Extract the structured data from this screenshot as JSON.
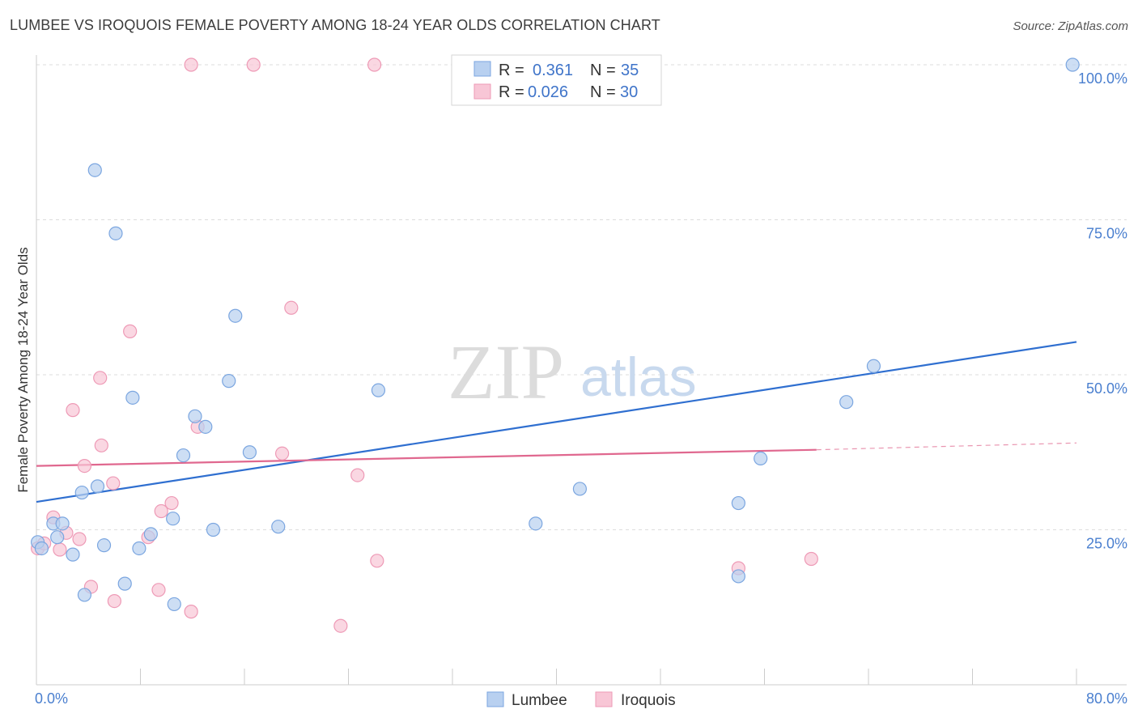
{
  "title": "LUMBEE VS IROQUOIS FEMALE POVERTY AMONG 18-24 YEAR OLDS CORRELATION CHART",
  "source": "Source: ZipAtlas.com",
  "watermark": {
    "zip": "ZIP",
    "atlas": "atlas"
  },
  "legend_top": [
    {
      "r_label": "R =",
      "r_value": "0.361",
      "n_label": "N =",
      "n_value": "35"
    },
    {
      "r_label": "R =",
      "r_value": "0.026",
      "n_label": "N =",
      "n_value": "30"
    }
  ],
  "legend_bottom": [
    "Lumbee",
    "Iroquois"
  ],
  "colors": {
    "lumbee_fill": "#b8d0f0",
    "lumbee_stroke": "#7ba6e0",
    "lumbee_line": "#2f6fd0",
    "iroquois_fill": "#f8c6d6",
    "iroquois_stroke": "#ee9ab6",
    "iroquois_line": "#e0688f",
    "tick_text": "#4a7fcf",
    "grid": "#dddddd"
  },
  "chart_data": {
    "type": "scatter",
    "title": "LUMBEE VS IROQUOIS FEMALE POVERTY AMONG 18-24 YEAR OLDS CORRELATION CHART",
    "xlabel": "",
    "ylabel": "Female Poverty Among 18-24 Year Olds",
    "xlim": [
      0,
      80
    ],
    "ylim": [
      0,
      102
    ],
    "x_tick_labels": [
      "0.0%",
      "80.0%"
    ],
    "y_ticks": [
      25,
      50,
      75,
      100
    ],
    "y_tick_labels": [
      "25.0%",
      "50.0%",
      "75.0%",
      "100.0%"
    ],
    "grid": true,
    "legend_position": "top-center",
    "series": [
      {
        "name": "Lumbee",
        "points": [
          [
            0.1,
            23.0
          ],
          [
            0.4,
            22.0
          ],
          [
            1.3,
            26.0
          ],
          [
            1.6,
            23.8
          ],
          [
            2.0,
            26.0
          ],
          [
            2.8,
            21.0
          ],
          [
            3.5,
            31.0
          ],
          [
            3.7,
            14.5
          ],
          [
            4.5,
            83.0
          ],
          [
            4.7,
            32.0
          ],
          [
            5.2,
            22.5
          ],
          [
            6.1,
            72.8
          ],
          [
            6.8,
            16.3
          ],
          [
            7.4,
            46.3
          ],
          [
            7.9,
            22.0
          ],
          [
            8.8,
            24.3
          ],
          [
            10.5,
            26.8
          ],
          [
            10.6,
            13.0
          ],
          [
            11.3,
            37.0
          ],
          [
            12.2,
            43.3
          ],
          [
            13.0,
            41.6
          ],
          [
            13.6,
            25.0
          ],
          [
            14.8,
            49.0
          ],
          [
            15.3,
            59.5
          ],
          [
            16.4,
            37.5
          ],
          [
            18.6,
            25.5
          ],
          [
            26.3,
            47.5
          ],
          [
            38.4,
            26.0
          ],
          [
            41.8,
            31.6
          ],
          [
            54.0,
            29.3
          ],
          [
            54.0,
            17.5
          ],
          [
            55.7,
            36.5
          ],
          [
            62.3,
            45.6
          ],
          [
            64.4,
            51.4
          ],
          [
            79.7,
            100.0
          ]
        ],
        "trend": {
          "x": [
            0,
            80
          ],
          "y": [
            29.5,
            55.3
          ]
        }
      },
      {
        "name": "Iroquois",
        "points": [
          [
            0.1,
            22.0
          ],
          [
            0.6,
            22.8
          ],
          [
            1.3,
            27.0
          ],
          [
            1.8,
            21.8
          ],
          [
            2.3,
            24.5
          ],
          [
            2.8,
            44.3
          ],
          [
            3.3,
            23.5
          ],
          [
            3.7,
            35.3
          ],
          [
            4.2,
            15.8
          ],
          [
            4.9,
            49.5
          ],
          [
            5.0,
            38.6
          ],
          [
            5.9,
            32.5
          ],
          [
            6.0,
            13.5
          ],
          [
            7.2,
            57.0
          ],
          [
            9.4,
            15.3
          ],
          [
            9.6,
            28.0
          ],
          [
            8.6,
            23.8
          ],
          [
            10.4,
            29.3
          ],
          [
            11.9,
            11.8
          ],
          [
            11.9,
            100.0
          ],
          [
            12.4,
            41.6
          ],
          [
            16.7,
            100.0
          ],
          [
            18.9,
            37.3
          ],
          [
            19.6,
            60.8
          ],
          [
            23.4,
            9.5
          ],
          [
            24.7,
            33.8
          ],
          [
            26.0,
            100.0
          ],
          [
            26.2,
            20.0
          ],
          [
            54.0,
            18.8
          ],
          [
            59.6,
            20.3
          ]
        ],
        "trend": {
          "x": [
            0,
            60
          ],
          "y": [
            35.3,
            37.9
          ]
        },
        "trend_extension": {
          "x": [
            60,
            80
          ],
          "y": [
            37.9,
            39.0
          ]
        }
      }
    ]
  }
}
